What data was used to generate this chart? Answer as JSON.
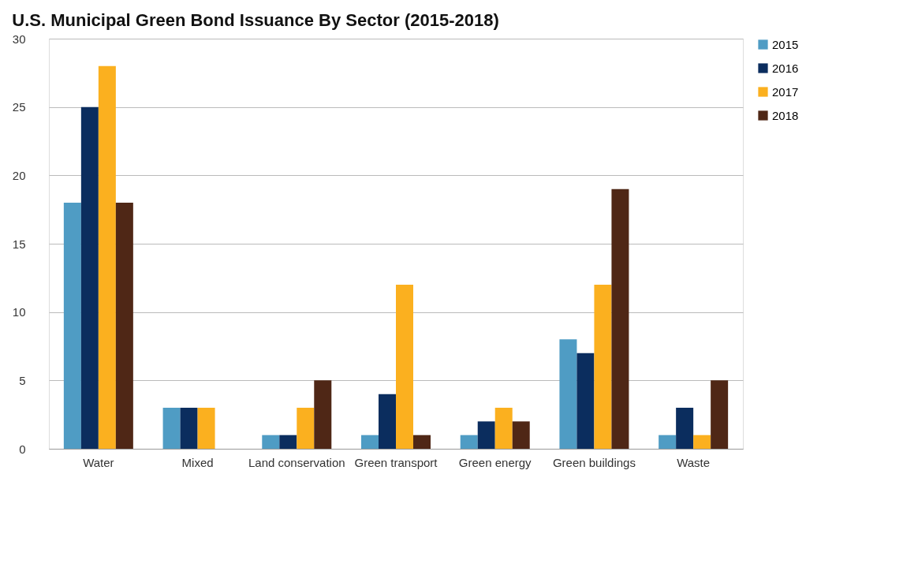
{
  "chart_data": {
    "type": "bar",
    "title": "U.S. Municipal Green Bond Issuance By Sector (2015-2018)",
    "categories": [
      "Water",
      "Mixed",
      "Land conservation",
      "Green transport",
      "Green energy",
      "Green buildings",
      "Waste"
    ],
    "series": [
      {
        "name": "2015",
        "color": "#4f9cc4",
        "values": [
          18,
          3,
          1,
          1,
          1,
          8,
          1
        ]
      },
      {
        "name": "2016",
        "color": "#0b2d5e",
        "values": [
          25,
          3,
          1,
          4,
          2,
          7,
          3
        ]
      },
      {
        "name": "2017",
        "color": "#fbb01f",
        "values": [
          28,
          3,
          3,
          12,
          3,
          12,
          1
        ]
      },
      {
        "name": "2018",
        "color": "#4f2716",
        "values": [
          18,
          null,
          5,
          1,
          2,
          19,
          5
        ]
      }
    ],
    "ylim": [
      0,
      30
    ],
    "yticks": [
      0,
      5,
      10,
      15,
      20,
      25,
      30
    ],
    "grid": "y",
    "legend": "top right"
  }
}
